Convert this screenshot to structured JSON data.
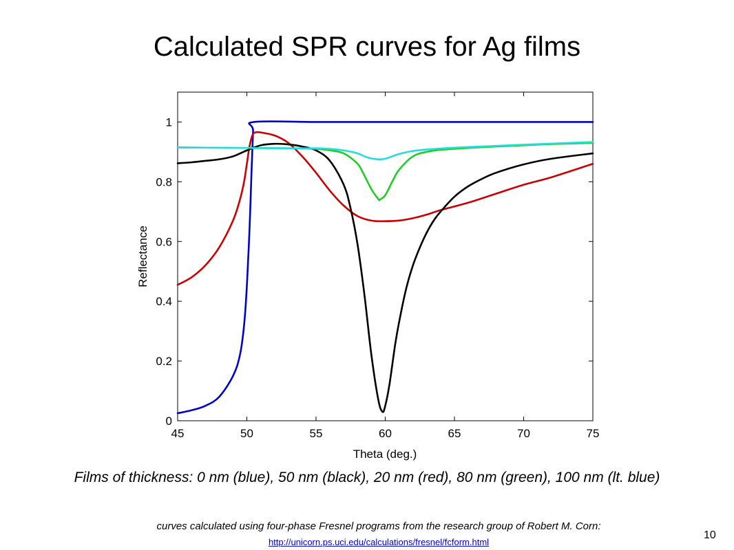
{
  "slide": {
    "title": "Calculated SPR curves for Ag films",
    "caption": "Films of thickness: 0 nm (blue), 50 nm (black), 20 nm (red), 80 nm (green), 100 nm (lt. blue)",
    "source_text": "curves calculated using four-phase Fresnel programs from the research group of Robert M. Corn:",
    "source_link": "http://unicorn.ps.uci.edu/calculations/fresnel/fcform.html",
    "page_number": "10"
  },
  "chart_data": {
    "type": "line",
    "title": "",
    "xlabel": "Theta (deg.)",
    "ylabel": "Reflectance",
    "xlim": [
      45,
      75
    ],
    "ylim": [
      0,
      1.1
    ],
    "xticks": [
      "45",
      "50",
      "55",
      "60",
      "65",
      "70",
      "75"
    ],
    "yticks": [
      "0",
      "0.2",
      "0.4",
      "0.6",
      "0.8",
      "1"
    ],
    "grid": false,
    "legend": "none",
    "series": [
      {
        "color": "#0000cc",
        "x": [
          45,
          46,
          47,
          48,
          49,
          49.5,
          49.8,
          50.0,
          50.2,
          50.35,
          50.45,
          50.5,
          55,
          60,
          65,
          70,
          75
        ],
        "y": [
          0.025,
          0.035,
          0.05,
          0.08,
          0.15,
          0.22,
          0.32,
          0.45,
          0.65,
          0.85,
          0.97,
          1.0,
          1.0,
          1.0,
          1.0,
          1.0,
          1.0
        ]
      },
      {
        "color": "#cc0000",
        "x": [
          45,
          46,
          47,
          48,
          49,
          49.5,
          49.8,
          50.0,
          50.2,
          50.4,
          50.6,
          51,
          52,
          53,
          54,
          55,
          56,
          57,
          58,
          59,
          60,
          61,
          62,
          63,
          64,
          66,
          68,
          70,
          72,
          75
        ],
        "y": [
          0.455,
          0.48,
          0.52,
          0.58,
          0.67,
          0.74,
          0.8,
          0.86,
          0.92,
          0.955,
          0.965,
          0.965,
          0.955,
          0.93,
          0.885,
          0.83,
          0.77,
          0.72,
          0.685,
          0.67,
          0.668,
          0.67,
          0.678,
          0.69,
          0.705,
          0.73,
          0.76,
          0.79,
          0.815,
          0.86
        ]
      },
      {
        "color": "#000000",
        "x": [
          45,
          46,
          47,
          48,
          49,
          50,
          51,
          52,
          53,
          54,
          55,
          56,
          57,
          57.5,
          58,
          58.5,
          59,
          59.5,
          59.8,
          60,
          60.3,
          60.7,
          61,
          61.5,
          62,
          62.5,
          63,
          63.5,
          64,
          65,
          66,
          67,
          68,
          70,
          72,
          75
        ],
        "y": [
          0.862,
          0.865,
          0.87,
          0.875,
          0.885,
          0.905,
          0.922,
          0.927,
          0.925,
          0.918,
          0.905,
          0.87,
          0.79,
          0.71,
          0.59,
          0.42,
          0.22,
          0.07,
          0.03,
          0.05,
          0.12,
          0.25,
          0.33,
          0.44,
          0.52,
          0.58,
          0.63,
          0.67,
          0.7,
          0.75,
          0.785,
          0.81,
          0.83,
          0.858,
          0.877,
          0.895
        ]
      },
      {
        "color": "#22cc22",
        "x": [
          45,
          50,
          53,
          55,
          56,
          57,
          58,
          58.5,
          59,
          59.5,
          59.6,
          60,
          60.5,
          61,
          62,
          63,
          64,
          66,
          68,
          70,
          72,
          75
        ],
        "y": [
          0.915,
          0.913,
          0.912,
          0.91,
          0.905,
          0.895,
          0.86,
          0.82,
          0.775,
          0.742,
          0.74,
          0.755,
          0.8,
          0.84,
          0.885,
          0.9,
          0.907,
          0.913,
          0.918,
          0.922,
          0.926,
          0.93
        ]
      },
      {
        "color": "#22dddd",
        "x": [
          45,
          50,
          53,
          55,
          56,
          57,
          58,
          58.5,
          59,
          59.5,
          59.6,
          60,
          60.5,
          61,
          62,
          63,
          65,
          67,
          70,
          75
        ],
        "y": [
          0.915,
          0.913,
          0.912,
          0.912,
          0.91,
          0.905,
          0.895,
          0.885,
          0.878,
          0.875,
          0.875,
          0.877,
          0.885,
          0.893,
          0.903,
          0.908,
          0.914,
          0.918,
          0.924,
          0.933
        ]
      }
    ]
  }
}
